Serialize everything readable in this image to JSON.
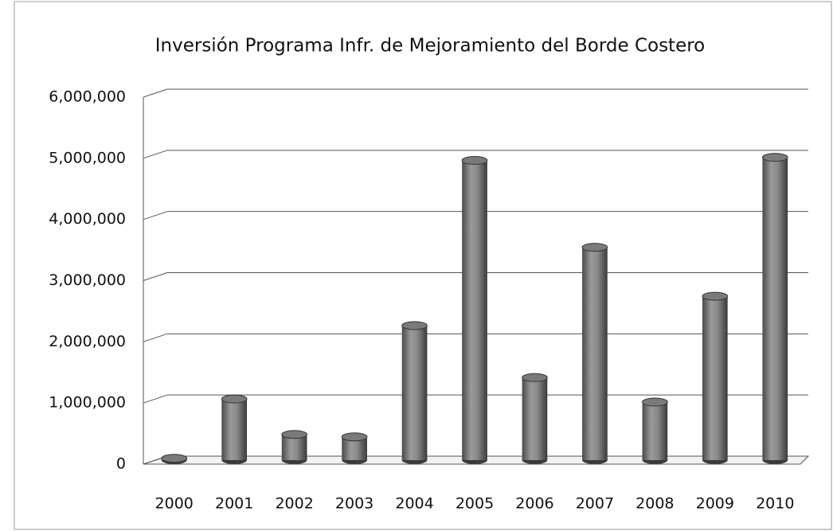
{
  "chart_data": {
    "type": "bar",
    "title": "Inversión Programa Infr. de Mejoramiento del Borde Costero",
    "categories": [
      "2000",
      "2001",
      "2002",
      "2003",
      "2004",
      "2005",
      "2006",
      "2007",
      "2008",
      "2009",
      "2010"
    ],
    "values": [
      30000,
      1000000,
      420000,
      380000,
      2200000,
      4900000,
      1350000,
      3480000,
      950000,
      2680000,
      4950000
    ],
    "color": "#7a7a7a",
    "ylim": [
      0,
      6000000
    ],
    "yticks": [
      0,
      {
        "value": 1000000,
        "label": "1,000,000"
      },
      {
        "value": 2000000,
        "label": "2,000,000"
      },
      {
        "value": 3000000,
        "label": "3,000,000"
      },
      {
        "value": 4000000,
        "label": "4,000,000"
      },
      {
        "value": 5000000,
        "label": "5,000,000"
      },
      {
        "value": 6000000,
        "label": "6,000,000"
      }
    ],
    "grid": true
  }
}
